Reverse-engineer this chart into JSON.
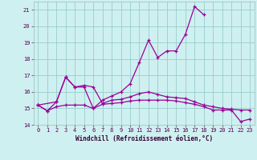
{
  "xlabel": "Windchill (Refroidissement éolien,°C)",
  "background_color": "#cff0f0",
  "grid_color": "#99cccc",
  "line_color": "#990099",
  "xlim": [
    -0.5,
    23.5
  ],
  "ylim": [
    14.0,
    21.5
  ],
  "yticks": [
    14,
    15,
    16,
    17,
    18,
    19,
    20,
    21
  ],
  "xticks": [
    0,
    1,
    2,
    3,
    4,
    5,
    6,
    7,
    8,
    9,
    10,
    11,
    12,
    13,
    14,
    15,
    16,
    17,
    18,
    19,
    20,
    21,
    22,
    23
  ],
  "line_upper_x": [
    0,
    1,
    2,
    3,
    4,
    5,
    6,
    7,
    8,
    9,
    10,
    11,
    12,
    13,
    14,
    15,
    16,
    17,
    18
  ],
  "line_upper_y": [
    15.2,
    14.85,
    15.4,
    16.9,
    16.3,
    16.3,
    15.0,
    15.5,
    15.75,
    16.0,
    16.5,
    17.8,
    19.15,
    18.1,
    18.5,
    18.5,
    19.5,
    21.2,
    20.7
  ],
  "line_mid_x": [
    0,
    2,
    3,
    4,
    5,
    6,
    7,
    8,
    9,
    10,
    11,
    12,
    13,
    14,
    15,
    16,
    17,
    18,
    19,
    20,
    21,
    22,
    23
  ],
  "line_mid_y": [
    15.2,
    15.4,
    16.9,
    16.3,
    16.4,
    16.3,
    15.3,
    15.5,
    15.55,
    15.7,
    15.9,
    16.0,
    15.85,
    15.7,
    15.65,
    15.6,
    15.4,
    15.2,
    15.1,
    15.0,
    14.95,
    14.9,
    14.9
  ],
  "line_lower_x": [
    0,
    1,
    2,
    3,
    4,
    5,
    6,
    7,
    8,
    9,
    10,
    11,
    12,
    13,
    14,
    15,
    16,
    17,
    18,
    19,
    20,
    21,
    22,
    23
  ],
  "line_lower_y": [
    15.2,
    14.85,
    15.1,
    15.2,
    15.2,
    15.2,
    15.0,
    15.25,
    15.3,
    15.35,
    15.45,
    15.5,
    15.5,
    15.5,
    15.5,
    15.45,
    15.35,
    15.25,
    15.1,
    14.9,
    14.9,
    14.9,
    14.2,
    14.35
  ]
}
